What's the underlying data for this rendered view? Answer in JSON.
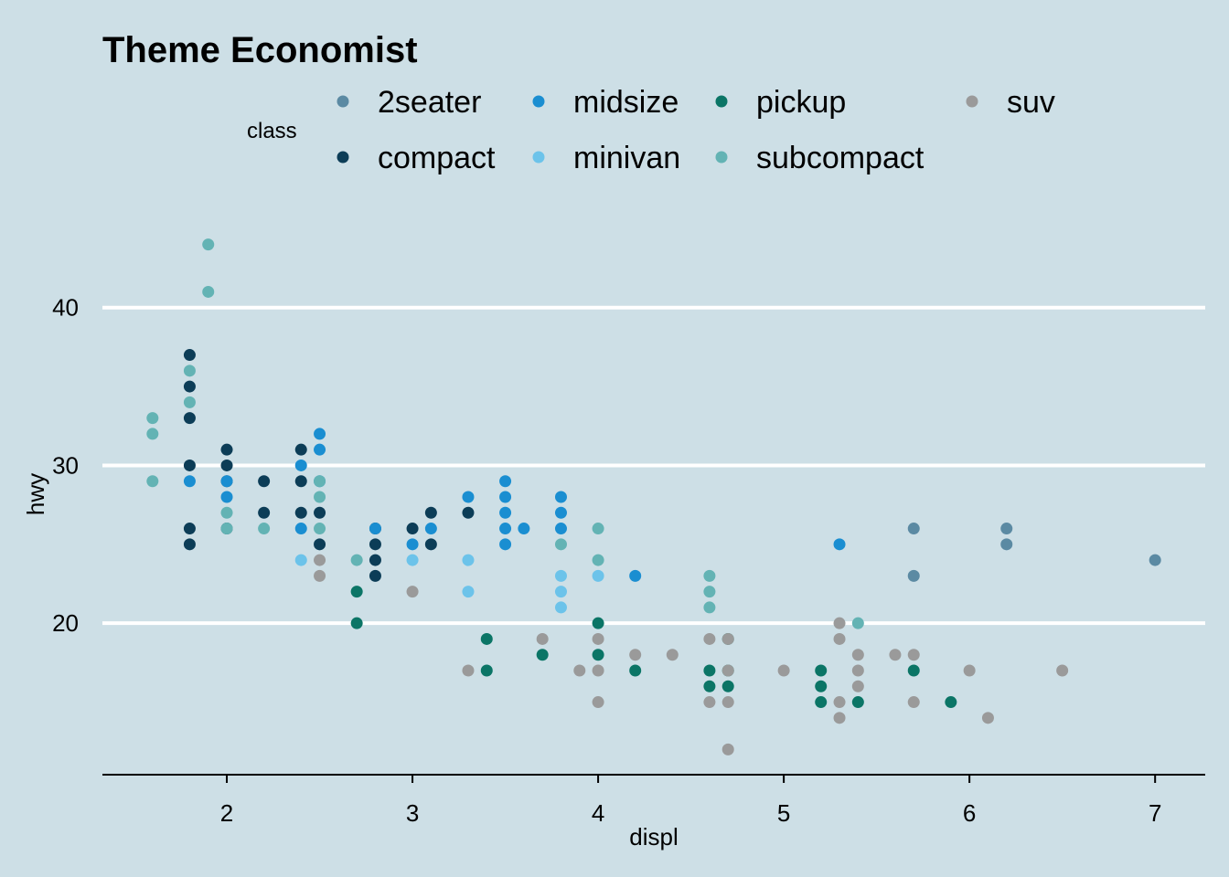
{
  "chart_data": {
    "type": "scatter",
    "title": "Theme Economist",
    "xlabel": "displ",
    "ylabel": "hwy",
    "xlim": [
      1.33,
      7.27
    ],
    "ylim": [
      10.4,
      45.6
    ],
    "x_ticks": [
      2,
      3,
      4,
      5,
      6,
      7
    ],
    "y_ticks": [
      20,
      30,
      40
    ],
    "grid": "horizontal major",
    "legend": {
      "title": "class",
      "placement": "top"
    },
    "series": [
      {
        "name": "2seater",
        "color": "#5b8aa3",
        "points": [
          [
            5.7,
            26
          ],
          [
            5.7,
            23
          ],
          [
            6.2,
            26
          ],
          [
            6.2,
            25
          ],
          [
            7.0,
            24
          ]
        ]
      },
      {
        "name": "compact",
        "color": "#0c3d57",
        "points": [
          [
            1.8,
            37
          ],
          [
            1.8,
            35
          ],
          [
            1.8,
            33
          ],
          [
            1.8,
            30
          ],
          [
            1.8,
            26
          ],
          [
            1.8,
            25
          ],
          [
            2.0,
            31
          ],
          [
            2.0,
            30
          ],
          [
            2.0,
            29
          ],
          [
            2.0,
            26
          ],
          [
            2.2,
            29
          ],
          [
            2.2,
            27
          ],
          [
            2.4,
            31
          ],
          [
            2.4,
            29
          ],
          [
            2.4,
            27
          ],
          [
            2.5,
            27
          ],
          [
            2.5,
            25
          ],
          [
            2.8,
            26
          ],
          [
            2.8,
            25
          ],
          [
            2.8,
            24
          ],
          [
            2.8,
            23
          ],
          [
            3.0,
            26
          ],
          [
            3.1,
            27
          ],
          [
            3.1,
            25
          ],
          [
            3.3,
            27
          ]
        ]
      },
      {
        "name": "midsize",
        "color": "#1a8ed1",
        "points": [
          [
            1.8,
            29
          ],
          [
            2.0,
            29
          ],
          [
            2.0,
            28
          ],
          [
            2.4,
            30
          ],
          [
            2.4,
            26
          ],
          [
            2.5,
            32
          ],
          [
            2.5,
            31
          ],
          [
            2.5,
            29
          ],
          [
            2.8,
            26
          ],
          [
            3.0,
            25
          ],
          [
            3.1,
            26
          ],
          [
            3.3,
            28
          ],
          [
            3.5,
            29
          ],
          [
            3.5,
            28
          ],
          [
            3.5,
            27
          ],
          [
            3.5,
            26
          ],
          [
            3.5,
            25
          ],
          [
            3.6,
            26
          ],
          [
            3.8,
            28
          ],
          [
            3.8,
            27
          ],
          [
            3.8,
            26
          ],
          [
            4.2,
            23
          ],
          [
            5.3,
            25
          ]
        ]
      },
      {
        "name": "minivan",
        "color": "#6cc3ea",
        "points": [
          [
            2.4,
            24
          ],
          [
            3.0,
            24
          ],
          [
            3.3,
            24
          ],
          [
            3.3,
            22
          ],
          [
            3.8,
            23
          ],
          [
            3.8,
            22
          ],
          [
            3.8,
            21
          ],
          [
            4.0,
            23
          ]
        ]
      },
      {
        "name": "pickup",
        "color": "#0b7566",
        "points": [
          [
            2.7,
            22
          ],
          [
            2.7,
            20
          ],
          [
            3.4,
            19
          ],
          [
            3.4,
            17
          ],
          [
            3.7,
            18
          ],
          [
            4.0,
            20
          ],
          [
            4.0,
            18
          ],
          [
            4.2,
            17
          ],
          [
            4.6,
            17
          ],
          [
            4.6,
            16
          ],
          [
            4.7,
            19
          ],
          [
            4.7,
            17
          ],
          [
            4.7,
            16
          ],
          [
            5.2,
            17
          ],
          [
            5.2,
            16
          ],
          [
            5.2,
            15
          ],
          [
            5.4,
            15
          ],
          [
            5.7,
            17
          ],
          [
            5.9,
            15
          ]
        ]
      },
      {
        "name": "subcompact",
        "color": "#63b3b4",
        "points": [
          [
            1.6,
            33
          ],
          [
            1.6,
            32
          ],
          [
            1.6,
            29
          ],
          [
            1.9,
            44
          ],
          [
            1.9,
            41
          ],
          [
            1.8,
            36
          ],
          [
            1.8,
            34
          ],
          [
            2.0,
            27
          ],
          [
            2.0,
            26
          ],
          [
            2.2,
            26
          ],
          [
            2.5,
            29
          ],
          [
            2.5,
            28
          ],
          [
            2.5,
            26
          ],
          [
            2.7,
            24
          ],
          [
            3.8,
            25
          ],
          [
            4.0,
            26
          ],
          [
            4.0,
            24
          ],
          [
            4.6,
            23
          ],
          [
            4.6,
            22
          ],
          [
            4.6,
            21
          ],
          [
            5.4,
            20
          ]
        ]
      },
      {
        "name": "suv",
        "color": "#9a9a9a",
        "points": [
          [
            2.5,
            24
          ],
          [
            2.5,
            23
          ],
          [
            3.0,
            22
          ],
          [
            3.3,
            17
          ],
          [
            3.7,
            19
          ],
          [
            3.9,
            17
          ],
          [
            4.0,
            19
          ],
          [
            4.0,
            17
          ],
          [
            4.0,
            15
          ],
          [
            4.2,
            18
          ],
          [
            4.4,
            18
          ],
          [
            4.6,
            19
          ],
          [
            4.6,
            15
          ],
          [
            4.7,
            19
          ],
          [
            4.7,
            17
          ],
          [
            4.7,
            15
          ],
          [
            4.7,
            12
          ],
          [
            5.0,
            17
          ],
          [
            5.3,
            20
          ],
          [
            5.3,
            19
          ],
          [
            5.3,
            15
          ],
          [
            5.3,
            14
          ],
          [
            5.4,
            18
          ],
          [
            5.4,
            17
          ],
          [
            5.4,
            16
          ],
          [
            5.6,
            18
          ],
          [
            5.7,
            18
          ],
          [
            5.7,
            15
          ],
          [
            6.0,
            17
          ],
          [
            6.1,
            14
          ],
          [
            6.5,
            17
          ]
        ]
      }
    ]
  }
}
